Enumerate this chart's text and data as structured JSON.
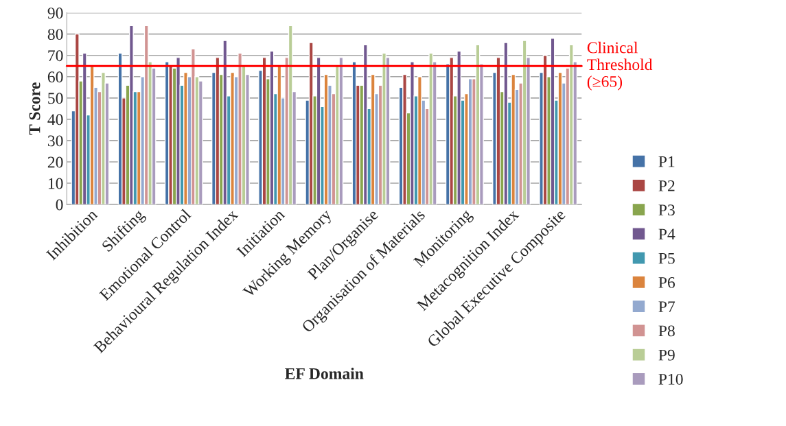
{
  "chart_data": {
    "type": "bar",
    "xlabel": "EF Domain",
    "ylabel": "T Score",
    "categories": [
      "Inhibition",
      "Shifting",
      "Emotional Control",
      "Behavioural Regulation Index",
      "Initiation",
      "Working Memory",
      "Plan/Organise",
      "Organisation of Materials",
      "Monitoring",
      "Metacognition Index",
      "Global Executive Composite"
    ],
    "series": [
      {
        "name": "P1",
        "color": "#4572a7",
        "values": [
          44,
          71,
          67,
          62,
          63,
          49,
          67,
          55,
          66,
          62,
          62
        ]
      },
      {
        "name": "P2",
        "color": "#aa4643",
        "values": [
          80,
          50,
          65,
          69,
          69,
          76,
          56,
          61,
          69,
          69,
          70
        ]
      },
      {
        "name": "P3",
        "color": "#89a54e",
        "values": [
          58,
          56,
          64,
          61,
          59,
          51,
          56,
          43,
          51,
          53,
          60
        ]
      },
      {
        "name": "P4",
        "color": "#71588f",
        "values": [
          71,
          84,
          69,
          77,
          72,
          69,
          75,
          67,
          72,
          76,
          78
        ]
      },
      {
        "name": "P5",
        "color": "#4198af",
        "values": [
          42,
          53,
          56,
          51,
          52,
          46,
          45,
          51,
          49,
          48,
          49
        ]
      },
      {
        "name": "P6",
        "color": "#db843d",
        "values": [
          65,
          53,
          62,
          62,
          65,
          61,
          61,
          60,
          52,
          61,
          62
        ]
      },
      {
        "name": "P7",
        "color": "#93a9cf",
        "values": [
          55,
          60,
          60,
          60,
          50,
          56,
          52,
          49,
          59,
          54,
          57
        ]
      },
      {
        "name": "P8",
        "color": "#d19392",
        "values": [
          53,
          84,
          73,
          71,
          69,
          52,
          56,
          45,
          59,
          57,
          64
        ]
      },
      {
        "name": "P9",
        "color": "#b9cd96",
        "values": [
          62,
          67,
          60,
          65,
          84,
          65,
          71,
          71,
          75,
          77,
          75
        ]
      },
      {
        "name": "P10",
        "color": "#a99bbd",
        "values": [
          57,
          64,
          58,
          61,
          53,
          69,
          69,
          67,
          66,
          69,
          67
        ]
      }
    ],
    "ylim": [
      0,
      90
    ],
    "yticks": [
      0,
      10,
      20,
      30,
      40,
      50,
      60,
      70,
      80,
      90
    ],
    "grid": "y",
    "legend": "right",
    "ref_lines": [
      {
        "axis": "y",
        "value": 65,
        "label": "Clinical\nThreshold\n(≥65)",
        "color": "#ff0000",
        "line_style": "solid"
      }
    ]
  }
}
